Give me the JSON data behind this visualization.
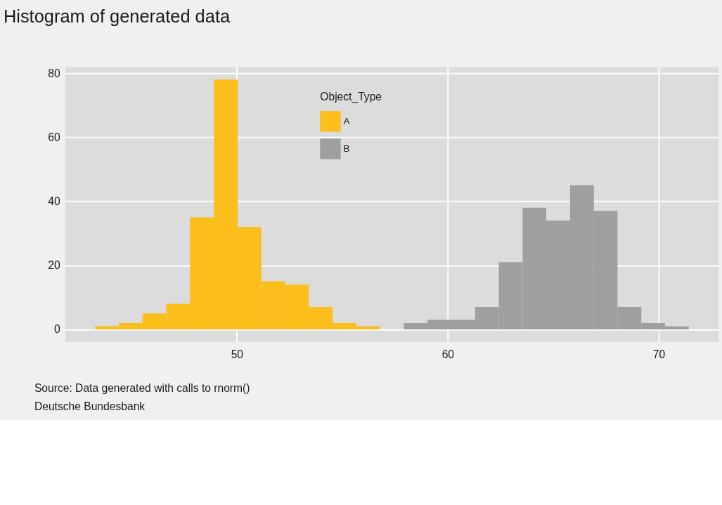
{
  "chart_data": {
    "type": "histogram",
    "title": "Histogram of generated data",
    "legend_title": "Object_Type",
    "bins": [
      43.28,
      44.41,
      45.53,
      46.66,
      47.78,
      48.91,
      50.04,
      51.16,
      52.29,
      53.41,
      54.54,
      55.67,
      56.79,
      57.92,
      59.04,
      60.17,
      61.3,
      62.42,
      63.55,
      64.67,
      65.8,
      66.93,
      68.05,
      69.18,
      70.3,
      71.43
    ],
    "series": [
      {
        "name": "A",
        "color": "#fbbe1a",
        "values": [
          1,
          2,
          5,
          8,
          35,
          78,
          32,
          15,
          14,
          7,
          2,
          1,
          null,
          null,
          null,
          null,
          null,
          null,
          null,
          null,
          null,
          null,
          null,
          null,
          null
        ]
      },
      {
        "name": "B",
        "color": "#9e9fa1",
        "values": [
          null,
          null,
          null,
          null,
          null,
          null,
          null,
          null,
          null,
          null,
          null,
          null,
          null,
          2,
          3,
          3,
          7,
          21,
          38,
          34,
          45,
          37,
          7,
          2,
          1
        ]
      }
    ],
    "xlim": [
      41.87,
      72.84
    ],
    "xticks": [
      50,
      60,
      70
    ],
    "ylim": [
      -3.9,
      81.9
    ],
    "yticks": [
      0,
      20,
      40,
      60,
      80
    ],
    "grid": true,
    "legend": "top",
    "annotations": [
      "Source: Data generated with calls to rnorm()",
      "Deutsche Bundesbank"
    ]
  }
}
